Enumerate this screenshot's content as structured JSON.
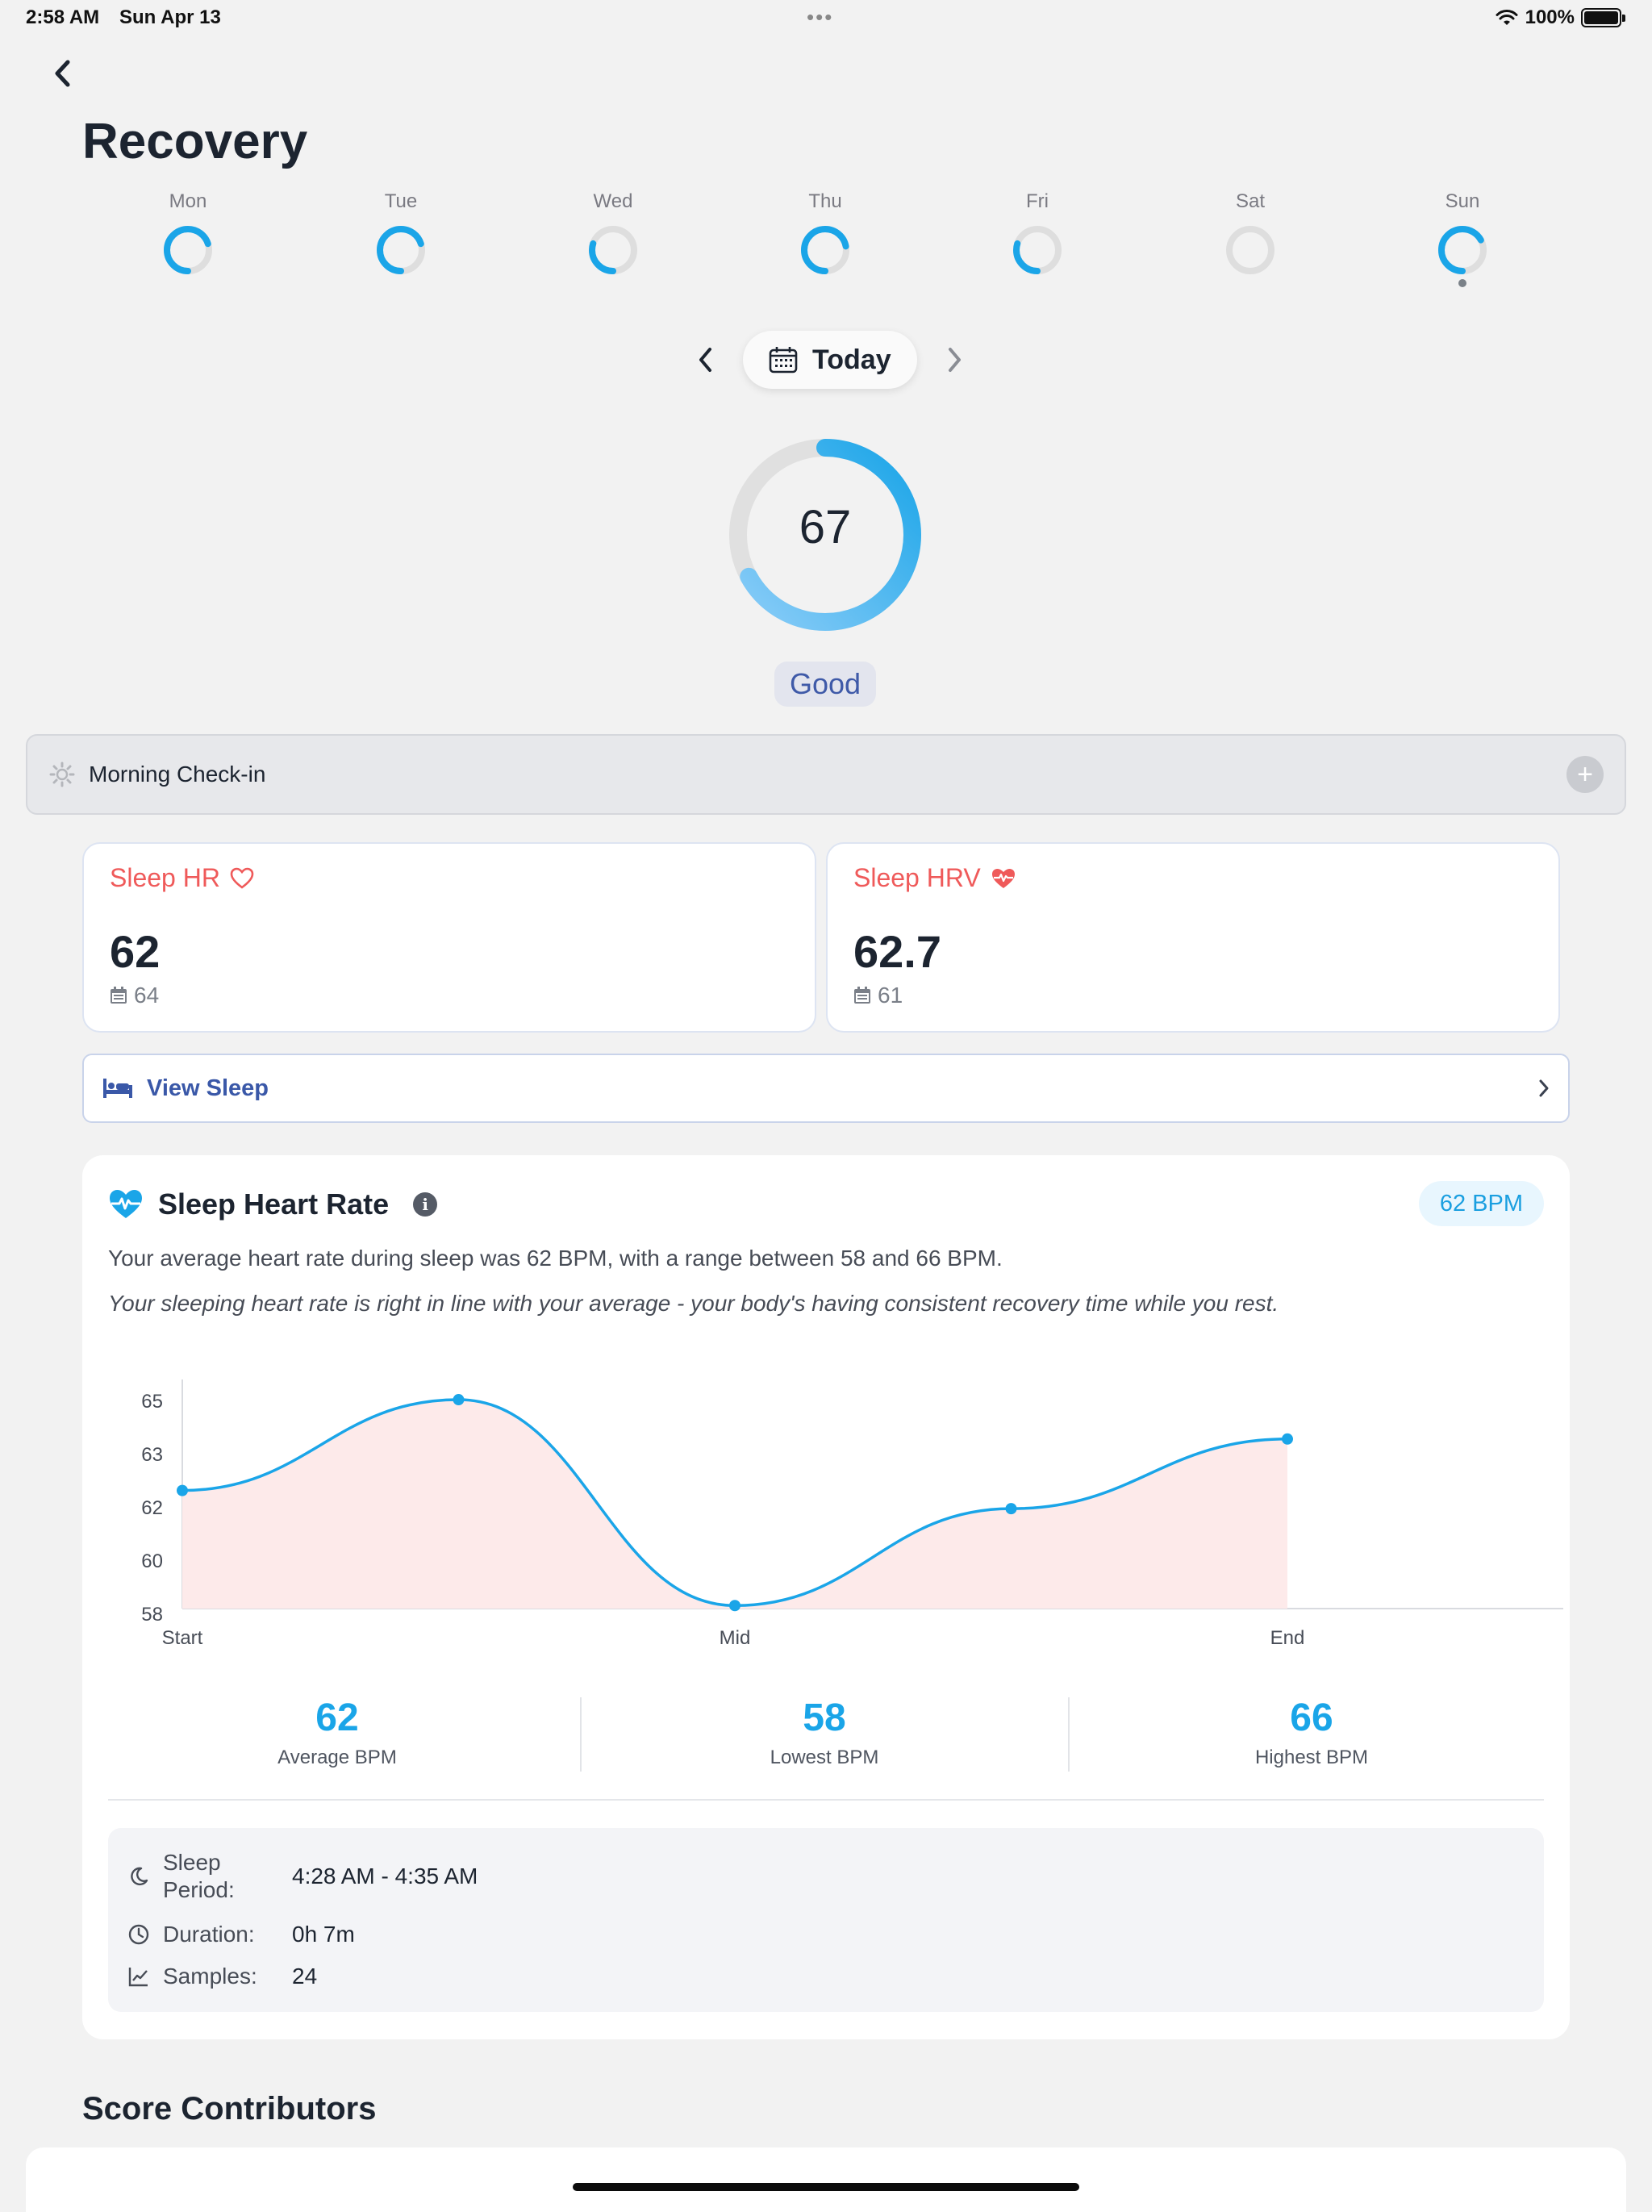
{
  "status_bar": {
    "time": "2:58 AM",
    "date": "Sun Apr 13",
    "dots": "•••",
    "battery": "100%"
  },
  "header": {
    "title": "Recovery"
  },
  "week": [
    {
      "label": "Mon",
      "progress": 0.7
    },
    {
      "label": "Tue",
      "progress": 0.7
    },
    {
      "label": "Wed",
      "progress": 0.3
    },
    {
      "label": "Thu",
      "progress": 0.72
    },
    {
      "label": "Fri",
      "progress": 0.3
    },
    {
      "label": "Sat",
      "progress": 0.0
    },
    {
      "label": "Sun",
      "progress": 0.67,
      "selected": true
    }
  ],
  "date_nav": {
    "label": "Today"
  },
  "score": {
    "value": "67",
    "fraction": 0.67,
    "status": "Good"
  },
  "checkin": {
    "label": "Morning Check-in"
  },
  "metrics": {
    "sleep_hr": {
      "title": "Sleep HR",
      "value": "62",
      "baseline": "64"
    },
    "sleep_hrv": {
      "title": "Sleep HRV",
      "value": "62.7",
      "baseline": "61"
    }
  },
  "view_sleep": {
    "label": "View Sleep"
  },
  "heart_rate_card": {
    "title": "Sleep Heart Rate",
    "badge": "62 BPM",
    "description": "Your average heart rate during sleep was 62 BPM, with a range between 58 and 66 BPM.",
    "insight": "Your sleeping heart rate is right in line with your average - your body's having consistent recovery time while you rest.",
    "stats": [
      {
        "value": "62",
        "label": "Average BPM"
      },
      {
        "value": "58",
        "label": "Lowest BPM"
      },
      {
        "value": "66",
        "label": "Highest BPM"
      }
    ],
    "sleep_period_label": "Sleep",
    "sleep_period_label2": "Period:",
    "sleep_period": "4:28 AM - 4:35 AM",
    "duration_label": "Duration:",
    "duration": "0h 7m",
    "samples_label": "Samples:",
    "samples": "24"
  },
  "chart_data": {
    "type": "area",
    "x": [
      "Start",
      "",
      "Mid",
      "",
      "End"
    ],
    "x_tick_labels": [
      "Start",
      "Mid",
      "End"
    ],
    "y_tick_labels": [
      "65",
      "63",
      "62",
      "60",
      "58"
    ],
    "series": [
      {
        "values": [
          61.9,
          64.9,
          58.1,
          61.3,
          63.6
        ]
      }
    ],
    "ylim": [
      58,
      65.3
    ],
    "line_color": "#1aa5e8",
    "fill_color": "#fdeaea"
  },
  "score_contributors": {
    "title": "Score Contributors"
  },
  "colors": {
    "accent": "#1aa5e8",
    "alert": "#ef5a5a",
    "badge_text": "#3f5aa8"
  }
}
